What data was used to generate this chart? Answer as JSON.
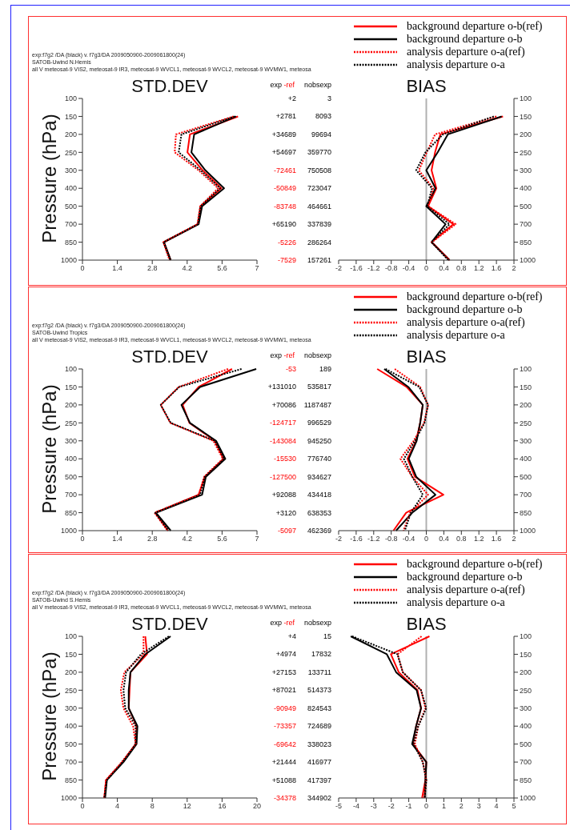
{
  "chart_data": [
    {
      "type": "line",
      "orientation": "horizontal",
      "title": "STD.DEV",
      "ylabel": "Pressure (hPa)",
      "annotations": [
        "exp:f7g2 /DA (black)  v. f7g3/DA 2009050900-2009061800(24)",
        "SATOB-Uwind  N.Hemis",
        "all V meteosat-9 VIS2, meteosat-9 IR3, meteosat-9 WVCL1, meteosat-9 WVCL2, meteosat-9 WVMW1, meteosa"
      ],
      "categories": [
        "100",
        "150",
        "200",
        "250",
        "300",
        "400",
        "500",
        "700",
        "850",
        "1000"
      ],
      "xlim": [
        0,
        7
      ],
      "xticks": [
        0,
        1.4,
        2.8,
        4.2,
        5.6,
        7
      ],
      "series": [
        {
          "color": "#ff0000",
          "line_style": "solid",
          "values": [
            null,
            6.24,
            4.31,
            4.21,
            4.82,
            5.57,
            4.74,
            4.63,
            3.27,
            3.54
          ]
        },
        {
          "color": "#000000",
          "line_style": "solid",
          "values": [
            null,
            6.16,
            4.48,
            4.37,
            4.93,
            5.68,
            4.8,
            4.66,
            3.27,
            3.54
          ]
        },
        {
          "color": "#ff0000",
          "line_style": "dotted",
          "values": [
            null,
            6.06,
            3.75,
            3.7,
            4.66,
            5.44,
            4.72,
            4.61,
            3.24,
            3.49
          ]
        },
        {
          "color": "#000000",
          "line_style": "dotted",
          "values": [
            null,
            6.11,
            3.97,
            3.86,
            4.74,
            5.52,
            4.74,
            4.63,
            3.25,
            3.52
          ]
        }
      ]
    },
    {
      "type": "other",
      "annotations": [
        "exp",
        "-ref",
        "nobsexp",
        "+2",
        "3",
        "+2781",
        "8093",
        "+34689",
        "99694",
        "+54697",
        "359770",
        "-72461",
        "750508",
        "-50849",
        "723047",
        "-83748",
        "464661",
        "+65190",
        "337839",
        "-5226",
        "286264",
        "-7529",
        "157261"
      ],
      "colors": [
        "#000000",
        "#ff0000",
        "#000000",
        "#000000",
        "#000000",
        "#000000",
        "#000000",
        "#000000",
        "#000000",
        "#000000",
        "#000000",
        "#ff0000",
        "#000000",
        "#ff0000",
        "#000000",
        "#ff0000",
        "#000000",
        "#000000",
        "#000000",
        "#ff0000",
        "#000000",
        "#ff0000",
        "#000000"
      ]
    },
    {
      "type": "line",
      "title": "BIAS",
      "legend": "top",
      "orientation": "horizontal",
      "categories": [
        "100",
        "150",
        "200",
        "250",
        "300",
        "400",
        "500",
        "700",
        "850",
        "1000"
      ],
      "xlim": [
        -2,
        2
      ],
      "xticks": [
        -2,
        -1.6,
        -1.2,
        -0.8,
        -0.4,
        0,
        0.4,
        0.8,
        1.2,
        1.6,
        2
      ],
      "ref_lines": [
        {
          "axis": "x",
          "value": 0,
          "color": "#b0b0b0"
        }
      ],
      "series": [
        {
          "name": "background departure o-b(ref)",
          "color": "#ff0000",
          "line_style": "solid",
          "values": [
            null,
            1.75,
            0.32,
            0.2,
            0.12,
            0.23,
            0.04,
            0.62,
            0.12,
            0.53
          ]
        },
        {
          "name": "background departure o-b",
          "color": "#000000",
          "line_style": "solid",
          "values": [
            null,
            1.72,
            0.49,
            0.26,
            0.0,
            0.21,
            0.0,
            0.44,
            0.12,
            0.53
          ]
        },
        {
          "name": "analysis departure o-a(ref)",
          "color": "#ff0000",
          "line_style": "dotted",
          "values": [
            null,
            1.6,
            0.2,
            0.01,
            -0.17,
            0.16,
            0.04,
            0.67,
            0.13,
            0.53
          ]
        },
        {
          "name": "analysis departure o-a",
          "color": "#000000",
          "line_style": "dotted",
          "values": [
            null,
            1.54,
            0.38,
            -0.02,
            -0.23,
            0.13,
            0.02,
            0.53,
            0.12,
            0.5
          ]
        }
      ]
    },
    {
      "type": "line",
      "orientation": "horizontal",
      "title": "STD.DEV",
      "ylabel": "Pressure (hPa)",
      "annotations": [
        "exp:f7g2 /DA (black)  v. f7g3/DA 2009050900-2009061800(24)",
        "SATOB-Uwind  Tropics",
        "all V meteosat-9 VIS2, meteosat-9 IR3, meteosat-9 WVCL1, meteosat-9 WVCL2, meteosat-9 WVMW1, meteosa"
      ],
      "categories": [
        "100",
        "150",
        "200",
        "250",
        "300",
        "400",
        "500",
        "700",
        "850",
        "1000"
      ],
      "xlim": [
        0,
        7
      ],
      "xticks": [
        0,
        1.4,
        2.8,
        4.2,
        5.6,
        7
      ],
      "series": [
        {
          "color": "#ff0000",
          "line_style": "solid",
          "values": [
            6.0,
            4.66,
            4.02,
            4.29,
            5.31,
            5.66,
            4.91,
            4.66,
            2.92,
            3.43
          ]
        },
        {
          "color": "#000000",
          "line_style": "solid",
          "values": [
            6.97,
            4.72,
            3.97,
            4.31,
            5.36,
            5.73,
            4.95,
            4.8,
            2.95,
            3.54
          ]
        },
        {
          "color": "#ff0000",
          "line_style": "dotted",
          "values": [
            5.84,
            3.86,
            3.14,
            3.52,
            5.25,
            5.63,
            4.88,
            4.66,
            2.89,
            3.41
          ]
        },
        {
          "color": "#000000",
          "line_style": "dotted",
          "values": [
            6.38,
            3.88,
            3.14,
            3.54,
            5.31,
            5.68,
            4.91,
            4.72,
            2.92,
            3.45
          ]
        }
      ]
    },
    {
      "type": "other",
      "annotations": [
        "exp",
        "-ref",
        "nobsexp",
        "-53",
        "189",
        "+131010",
        "535817",
        "+70086",
        "1187487",
        "-124717",
        "996529",
        "-143084",
        "945250",
        "-15530",
        "776740",
        "-127500",
        "934627",
        "+92088",
        "434418",
        "+3120",
        "638353",
        "-5097",
        "462369"
      ],
      "colors": [
        "#000000",
        "#ff0000",
        "#000000",
        "#ff0000",
        "#000000",
        "#000000",
        "#000000",
        "#000000",
        "#000000",
        "#ff0000",
        "#000000",
        "#ff0000",
        "#000000",
        "#ff0000",
        "#000000",
        "#ff0000",
        "#000000",
        "#000000",
        "#000000",
        "#000000",
        "#000000",
        "#ff0000",
        "#000000"
      ]
    },
    {
      "type": "line",
      "title": "BIAS",
      "legend": "top",
      "orientation": "horizontal",
      "categories": [
        "100",
        "150",
        "200",
        "250",
        "300",
        "400",
        "500",
        "700",
        "850",
        "1000"
      ],
      "xlim": [
        -2,
        2
      ],
      "xticks": [
        -2,
        -1.6,
        -1.2,
        -0.8,
        -0.4,
        0,
        0.4,
        0.8,
        1.2,
        1.6,
        2
      ],
      "ref_lines": [
        {
          "axis": "x",
          "value": 0,
          "color": "#b0b0b0"
        }
      ],
      "series": [
        {
          "name": "background departure o-b(ref)",
          "color": "#ff0000",
          "line_style": "solid",
          "values": [
            -1.12,
            -0.45,
            -0.08,
            -0.14,
            -0.23,
            -0.43,
            -0.26,
            0.39,
            -0.46,
            -0.75
          ]
        },
        {
          "name": "background departure o-b",
          "color": "#000000",
          "line_style": "solid",
          "values": [
            -0.96,
            -0.41,
            -0.08,
            -0.14,
            -0.22,
            -0.4,
            -0.23,
            0.21,
            -0.32,
            -0.69
          ]
        },
        {
          "name": "analysis departure o-a(ref)",
          "color": "#ff0000",
          "line_style": "dotted",
          "values": [
            -0.72,
            -0.14,
            0.04,
            -0.05,
            -0.29,
            -0.59,
            -0.32,
            0.04,
            -0.37,
            -0.52
          ]
        },
        {
          "name": "analysis departure o-a",
          "color": "#000000",
          "line_style": "dotted",
          "values": [
            -0.93,
            -0.16,
            0.04,
            -0.04,
            -0.26,
            -0.51,
            -0.32,
            -0.08,
            -0.35,
            -0.49
          ]
        }
      ]
    },
    {
      "type": "line",
      "orientation": "horizontal",
      "title": "STD.DEV",
      "ylabel": "Pressure (hPa)",
      "annotations": [
        "exp:f7g2 /DA (black)  v. f7g3/DA 2009050900-2009061800(24)",
        "SATOB-Uwind  S.Hemis",
        "all V meteosat-9 VIS2, meteosat-9 IR3, meteosat-9 WVCL1, meteosat-9 WVCL2, meteosat-9 WVMW1, meteosa"
      ],
      "categories": [
        "100",
        "150",
        "200",
        "250",
        "300",
        "400",
        "500",
        "700",
        "850",
        "1000"
      ],
      "xlim": [
        0,
        20
      ],
      "xticks": [
        0,
        4,
        8,
        12,
        16,
        20
      ],
      "series": [
        {
          "color": "#ff0000",
          "line_style": "solid",
          "values": [
            7.2,
            7.4,
            5.5,
            5.4,
            5.3,
            6.2,
            6.1,
            4.6,
            2.7,
            2.5
          ]
        },
        {
          "color": "#000000",
          "line_style": "solid",
          "values": [
            10.1,
            7.2,
            5.5,
            5.3,
            5.3,
            6.3,
            6.2,
            4.7,
            2.8,
            2.6
          ]
        },
        {
          "color": "#ff0000",
          "line_style": "dotted",
          "values": [
            7.0,
            7.0,
            4.8,
            4.4,
            4.7,
            5.8,
            6.1,
            4.5,
            2.7,
            2.5
          ]
        },
        {
          "color": "#000000",
          "line_style": "dotted",
          "values": [
            9.9,
            6.7,
            5.0,
            4.7,
            4.9,
            6.1,
            6.1,
            4.6,
            2.8,
            2.5
          ]
        }
      ]
    },
    {
      "type": "other",
      "annotations": [
        "exp",
        "-ref",
        "nobsexp",
        "+4",
        "15",
        "+4974",
        "17832",
        "+27153",
        "133711",
        "+87021",
        "514373",
        "-90949",
        "824543",
        "-73357",
        "724689",
        "-69642",
        "338023",
        "+21444",
        "416977",
        "+51088",
        "417397",
        "-34378",
        "344902"
      ],
      "colors": [
        "#000000",
        "#ff0000",
        "#000000",
        "#000000",
        "#000000",
        "#000000",
        "#000000",
        "#000000",
        "#000000",
        "#000000",
        "#000000",
        "#ff0000",
        "#000000",
        "#ff0000",
        "#000000",
        "#ff0000",
        "#000000",
        "#000000",
        "#000000",
        "#000000",
        "#000000",
        "#ff0000",
        "#000000"
      ]
    },
    {
      "type": "line",
      "title": "BIAS",
      "legend": "top",
      "orientation": "horizontal",
      "categories": [
        "100",
        "150",
        "200",
        "250",
        "300",
        "400",
        "500",
        "700",
        "850",
        "1000"
      ],
      "xlim": [
        -5,
        5
      ],
      "xticks": [
        -5,
        -4,
        -3,
        -2,
        -1,
        0,
        1,
        2,
        3,
        4,
        5
      ],
      "ref_lines": [
        {
          "axis": "x",
          "value": 0,
          "color": "#b0b0b0"
        }
      ],
      "series": [
        {
          "name": "background departure o-b(ref)",
          "color": "#ff0000",
          "line_style": "solid",
          "values": [
            0.18,
            -2.02,
            -1.57,
            -0.5,
            -0.3,
            -0.58,
            -0.76,
            0,
            -0.05,
            -0.24
          ]
        },
        {
          "name": "background departure o-b",
          "color": "#000000",
          "line_style": "solid",
          "values": [
            -4.31,
            -2.25,
            -1.72,
            -0.55,
            -0.3,
            -0.58,
            -0.81,
            0,
            -0.05,
            -0.09
          ]
        },
        {
          "name": "analysis departure o-a(ref)",
          "color": "#ff0000",
          "line_style": "dotted",
          "values": [
            -0.27,
            -1.64,
            -1.34,
            -0.3,
            -0.05,
            -0.46,
            -0.65,
            -0.2,
            0,
            -0.12
          ]
        },
        {
          "name": "analysis departure o-a",
          "color": "#000000",
          "line_style": "dotted",
          "values": [
            -4.23,
            -1.64,
            -1.34,
            -0.3,
            0,
            -0.46,
            -0.73,
            -0.2,
            0,
            -0.09
          ]
        }
      ]
    }
  ]
}
